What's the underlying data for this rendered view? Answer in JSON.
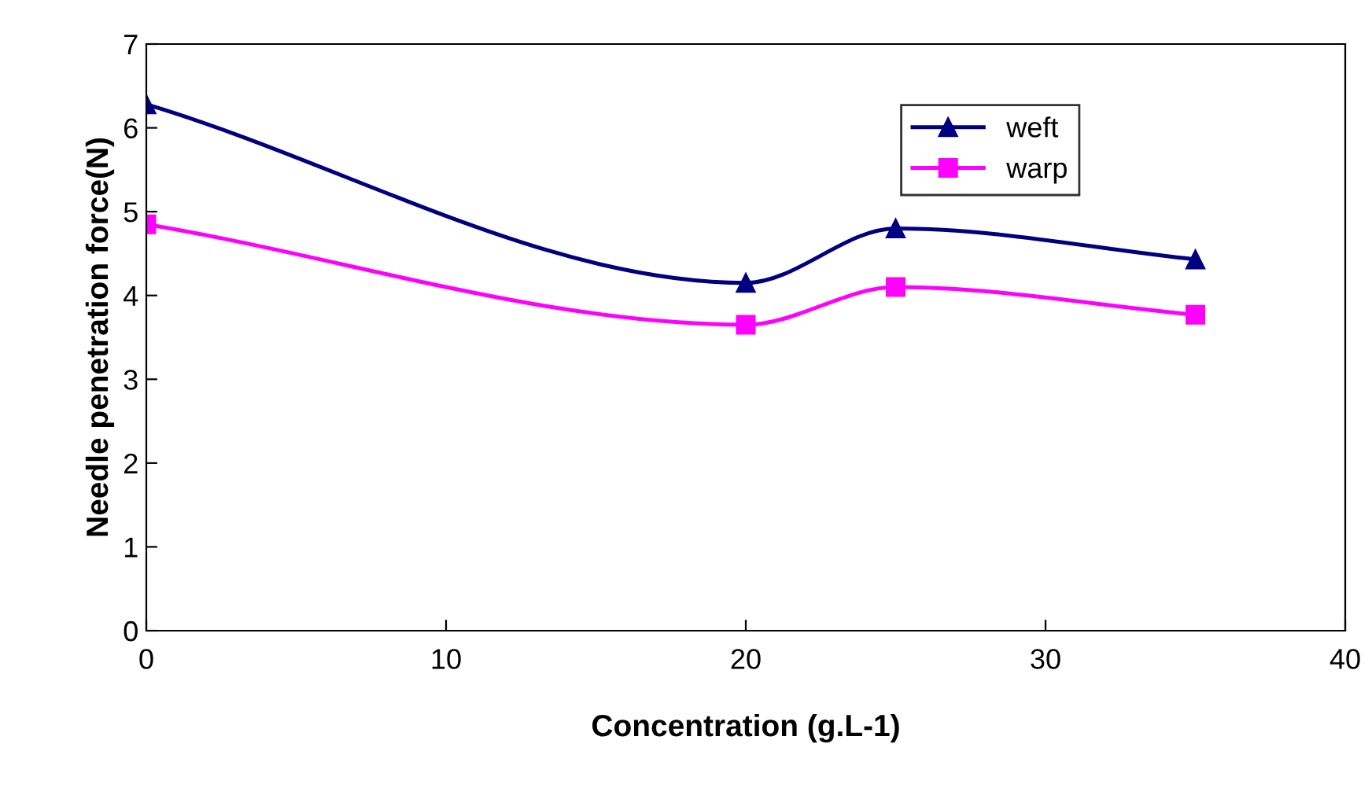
{
  "chart_data": {
    "type": "line",
    "xlabel": "Concentration (g.L-1)",
    "ylabel": "Needle penetration force(N)",
    "x": [
      0,
      20,
      25,
      35
    ],
    "series": [
      {
        "name": "weft",
        "color": "#000080",
        "marker": "triangle",
        "values": [
          6.28,
          4.15,
          4.8,
          4.43
        ]
      },
      {
        "name": "warp",
        "color": "#ff00ff",
        "marker": "square",
        "values": [
          4.85,
          3.65,
          4.1,
          3.77
        ]
      }
    ],
    "xlim": [
      0,
      40
    ],
    "xticks": [
      0,
      10,
      20,
      30,
      40
    ],
    "ylim": [
      0,
      7
    ],
    "yticks": [
      0,
      1,
      2,
      3,
      4,
      5,
      6,
      7
    ],
    "grid": false,
    "legend": "top right",
    "line_style": "solid"
  }
}
